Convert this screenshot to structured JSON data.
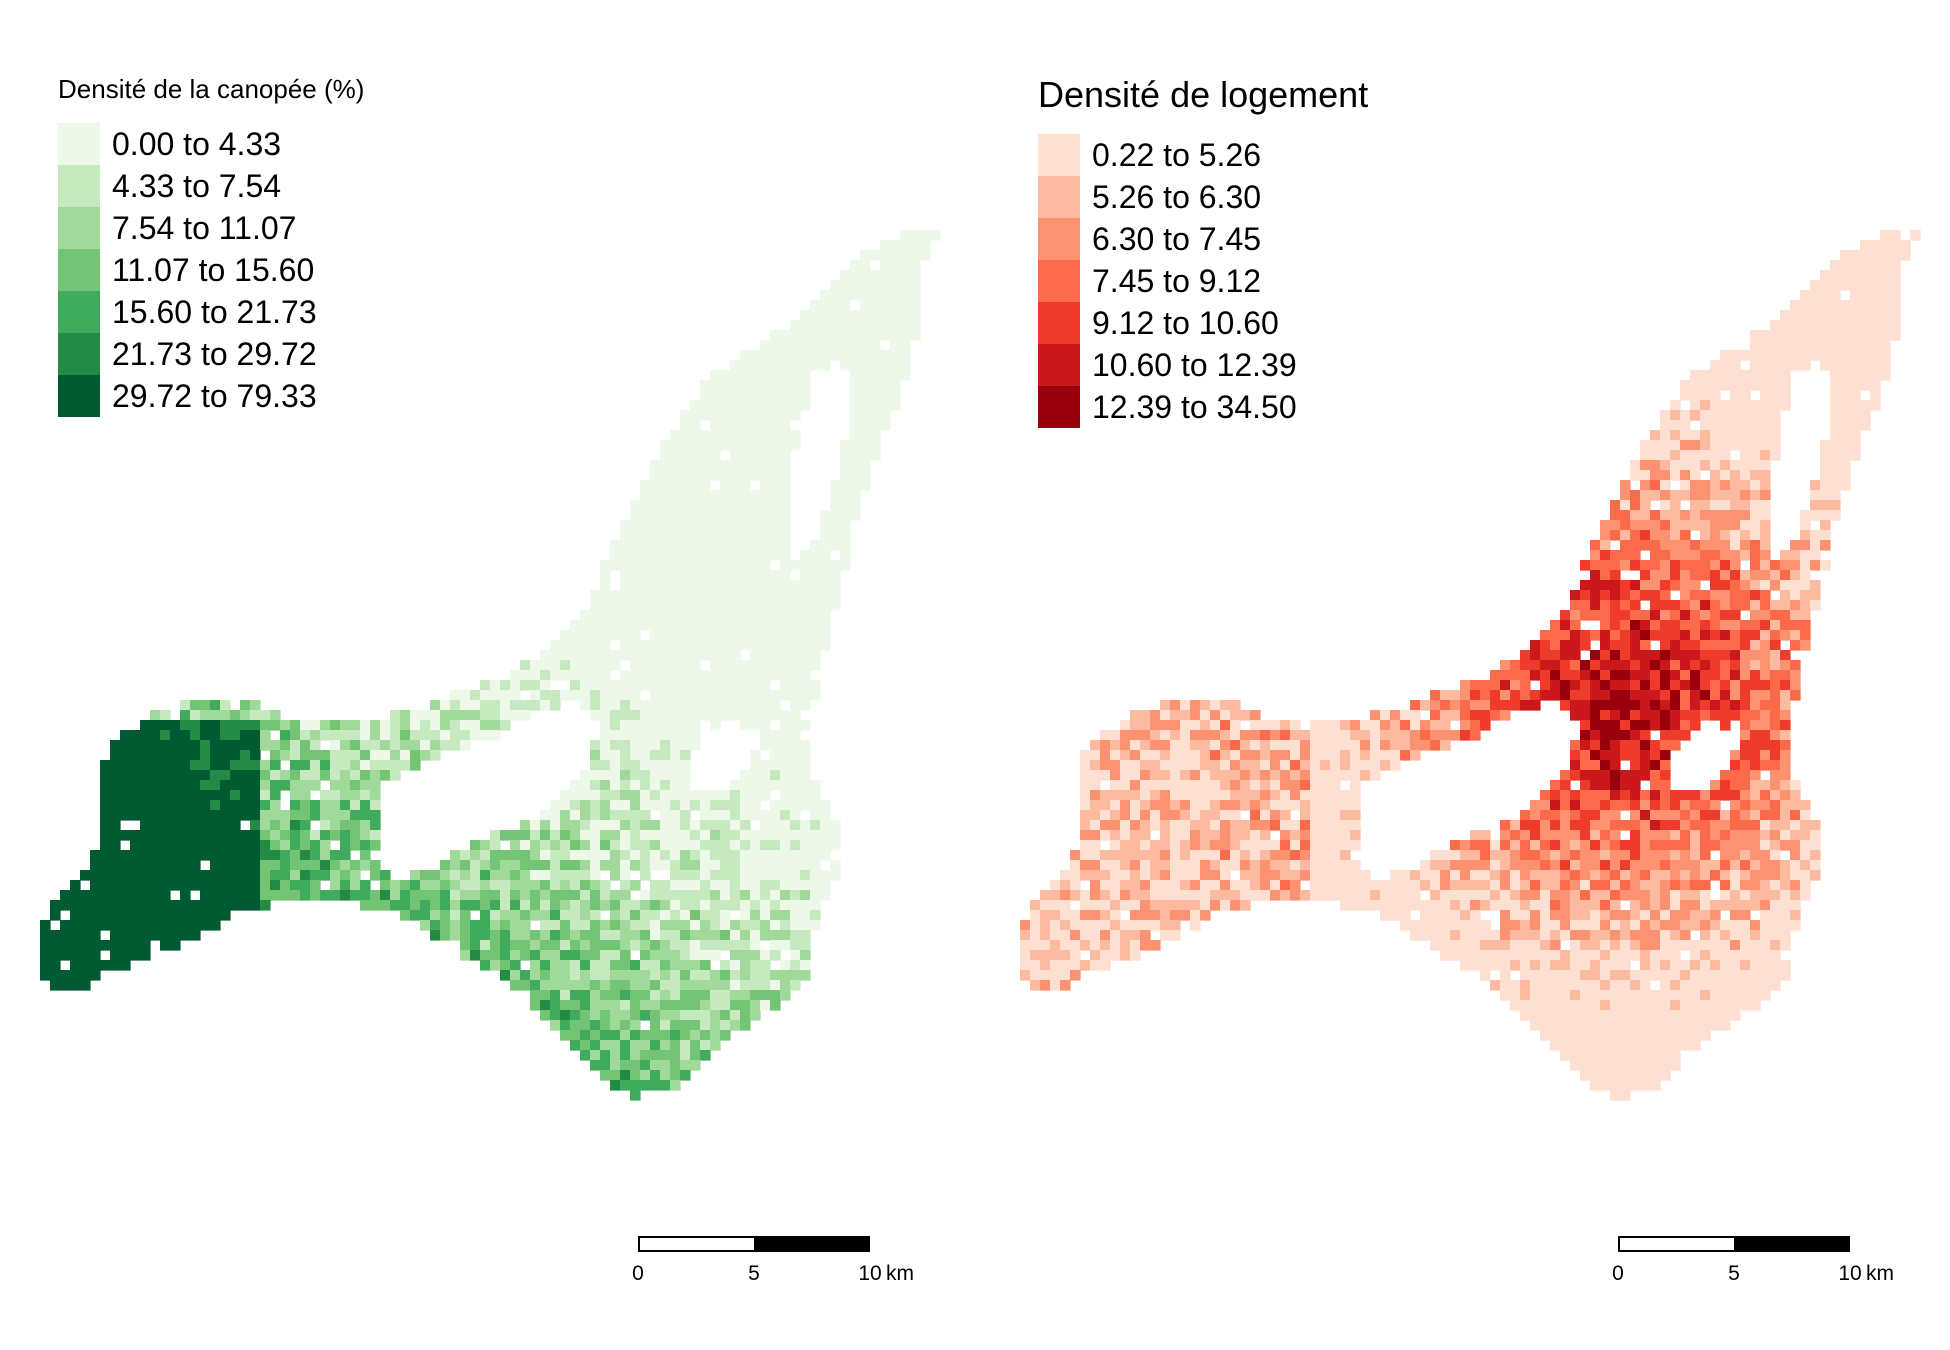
{
  "maps": [
    {
      "legend_title": "Densité de la canopée (%)",
      "palette": "greens",
      "classes": [
        {
          "label": "0.00 to 4.33",
          "color": "#edf8e9"
        },
        {
          "label": "4.33 to 7.54",
          "color": "#c7e9c0"
        },
        {
          "label": "7.54 to 11.07",
          "color": "#a1d99b"
        },
        {
          "label": "11.07 to 15.60",
          "color": "#74c476"
        },
        {
          "label": "15.60 to 21.73",
          "color": "#41ab5d"
        },
        {
          "label": "21.73 to 29.72",
          "color": "#238b45"
        },
        {
          "label": "29.72 to 79.33",
          "color": "#005a32"
        }
      ],
      "scale_bar": {
        "ticks": [
          "0",
          "5",
          "10"
        ],
        "unit": "km"
      }
    },
    {
      "legend_title": "Densité de logement",
      "palette": "reds",
      "classes": [
        {
          "label": "0.22 to 5.26",
          "color": "#fee0d2"
        },
        {
          "label": "5.26 to 6.30",
          "color": "#fcbba1"
        },
        {
          "label": "6.30 to 7.45",
          "color": "#fc9272"
        },
        {
          "label": "7.45 to 9.12",
          "color": "#fb6a4a"
        },
        {
          "label": "9.12 to 10.60",
          "color": "#ef3b2c"
        },
        {
          "label": "10.60 to 12.39",
          "color": "#cb181d"
        },
        {
          "label": "12.39 to 34.50",
          "color": "#99000d"
        }
      ],
      "scale_bar": {
        "ticks": [
          "0",
          "5",
          "10"
        ],
        "unit": "km"
      }
    }
  ]
}
